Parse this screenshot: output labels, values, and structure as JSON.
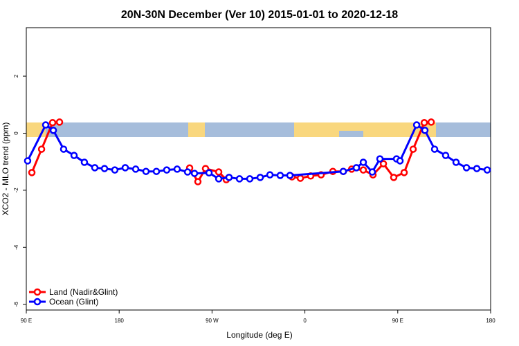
{
  "chart_data": {
    "type": "line",
    "title": "20N-30N December (Ver 10)   2015-01-01 to 2020-12-18",
    "x_label": "Longitude (deg E)",
    "y_label": "XCO2 - MLO trend (ppm)",
    "xlim": [
      90,
      540
    ],
    "ylim": [
      -6.2,
      3.7
    ],
    "xticks": [
      {
        "value": 90,
        "label": "90 E"
      },
      180,
      {
        "value": 270,
        "label": "90 W"
      },
      {
        "value": 360,
        "label": "0"
      },
      {
        "value": 450,
        "label": "90 E"
      },
      {
        "value": 540,
        "label": "180"
      }
    ],
    "yticks": [
      2,
      0,
      -2,
      -4,
      -6
    ],
    "legend": "bottom-left",
    "series": [
      {
        "name": "Land (Nadir&Glint)",
        "color": "#ff0000",
        "x": [
          95.4,
          104.8,
          115.5,
          122.2,
          null,
          248.3,
          256.3,
          263.7,
          276.5,
          283.8,
          null,
          347.5,
          355.6,
          365.6,
          375.7,
          387.1,
          397.2,
          405.3,
          416.6,
          426.0,
          436.1,
          446.1,
          456.2,
          464.9,
          475.7,
          482.4
        ],
        "values": [
          -1.38,
          -0.56,
          0.37,
          0.39,
          null,
          -1.22,
          -1.7,
          -1.24,
          -1.36,
          -1.63,
          null,
          -1.53,
          -1.58,
          -1.5,
          -1.46,
          -1.34,
          -1.34,
          -1.26,
          -1.29,
          -1.46,
          -1.07,
          -1.55,
          -1.38,
          -0.56,
          0.37,
          0.39
        ]
      },
      {
        "name": "Ocean (Glint)",
        "color": "#0000ff",
        "x": [
          91.3,
          108.8,
          116.2,
          126.2,
          136.3,
          146.3,
          156.4,
          165.8,
          175.8,
          185.9,
          196.0,
          206.0,
          216.1,
          226.1,
          236.2,
          246.3,
          253.0,
          267.1,
          276.5,
          286.5,
          296.6,
          306.6,
          316.7,
          326.1,
          336.1,
          345.5,
          397.2,
          409.9,
          416.6,
          425.3,
          432.7,
          448.8,
          452.2,
          468.3,
          476.3,
          485.7,
          496.4,
          506.5,
          516.6,
          526.6,
          536.7
        ],
        "values": [
          -0.97,
          0.29,
          0.1,
          -0.56,
          -0.78,
          -1.02,
          -1.21,
          -1.24,
          -1.29,
          -1.21,
          -1.26,
          -1.34,
          -1.34,
          -1.29,
          -1.26,
          -1.36,
          -1.41,
          -1.39,
          -1.6,
          -1.55,
          -1.6,
          -1.6,
          -1.55,
          -1.46,
          -1.48,
          -1.48,
          -1.34,
          -1.21,
          -1.02,
          -1.36,
          -0.9,
          -0.9,
          -0.97,
          0.29,
          0.1,
          -0.56,
          -0.78,
          -1.02,
          -1.21,
          -1.24,
          -1.29
        ]
      }
    ]
  }
}
